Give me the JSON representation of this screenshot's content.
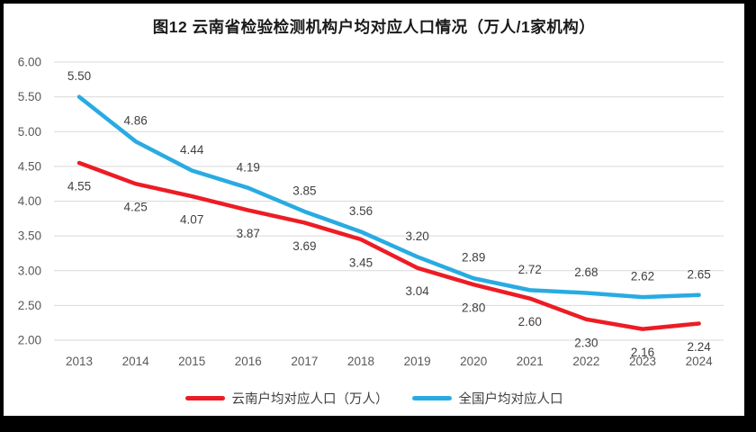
{
  "frame": {
    "border_color": "#000000",
    "background": "#FFFFFF"
  },
  "chart_data": {
    "type": "line",
    "title": "图12 云南省检验检测机构户均对应人口情况（万人/1家机构）",
    "categories": [
      "2013",
      "2014",
      "2015",
      "2016",
      "2017",
      "2018",
      "2019",
      "2020",
      "2021",
      "2022",
      "2023",
      "2024"
    ],
    "series": [
      {
        "id": "yunnan",
        "name": "云南户均对应人口（万人）",
        "color": "#ED1C24",
        "label_position": "below",
        "values": [
          4.55,
          4.25,
          4.07,
          3.87,
          3.69,
          3.45,
          3.04,
          2.8,
          2.6,
          2.3,
          2.16,
          2.24
        ]
      },
      {
        "id": "national",
        "name": "全国户均对应人口",
        "color": "#29ABE2",
        "label_position": "above",
        "values": [
          5.5,
          4.86,
          4.44,
          4.19,
          3.85,
          3.56,
          3.2,
          2.89,
          2.72,
          2.68,
          2.62,
          2.65
        ]
      }
    ],
    "ylim": [
      2.0,
      6.0
    ],
    "yticks": [
      "6.00",
      "5.50",
      "5.00",
      "4.50",
      "4.00",
      "3.50",
      "3.00",
      "2.50",
      "2.00"
    ],
    "grid": true,
    "grid_color": "#D9D9D9",
    "axis_text_color": "#595959",
    "data_label_color": "#404040",
    "legend_position": "bottom",
    "data_labels_shown": true
  }
}
